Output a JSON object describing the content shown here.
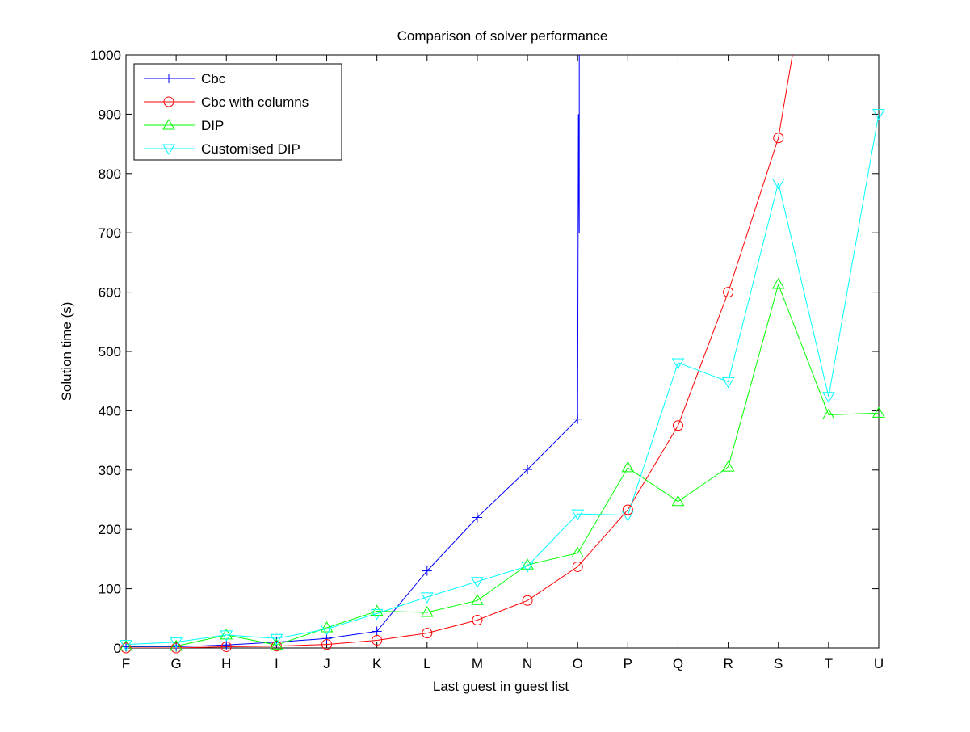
{
  "chart_data": {
    "type": "line",
    "title": "Comparison of solver performance",
    "xlabel": "Last guest in guest list",
    "ylabel": "Solution time (s)",
    "categories": [
      "F",
      "G",
      "H",
      "I",
      "J",
      "K",
      "L",
      "M",
      "N",
      "O",
      "P",
      "Q",
      "R",
      "S",
      "T",
      "U"
    ],
    "ylim": [
      0,
      1000
    ],
    "yticks": [
      0,
      100,
      200,
      300,
      400,
      500,
      600,
      700,
      800,
      900,
      1000
    ],
    "grid": false,
    "legend_position": "top-left",
    "series": [
      {
        "name": "Cbc",
        "color": "#0000ff",
        "marker": "plus",
        "values": [
          2,
          2,
          5,
          10,
          16,
          28,
          130,
          220,
          301,
          386,
          null,
          null,
          null,
          null,
          null,
          null
        ],
        "overflow_note": "line rises vertically past 1000 at O"
      },
      {
        "name": "Cbc with columns",
        "color": "#ff0000",
        "marker": "circle",
        "values": [
          0,
          0,
          2,
          3,
          6,
          13,
          25,
          47,
          80,
          137,
          233,
          375,
          600,
          860,
          null,
          null
        ],
        "overflow_note": "line continues above 1000 after S"
      },
      {
        "name": "DIP",
        "color": "#00ff00",
        "marker": "triangle-up",
        "values": [
          3,
          3,
          22,
          5,
          34,
          62,
          60,
          80,
          140,
          160,
          304,
          247,
          305,
          613,
          393,
          396
        ]
      },
      {
        "name": "Customised DIP",
        "color": "#00ffff",
        "marker": "triangle-down",
        "values": [
          6,
          10,
          22,
          16,
          32,
          58,
          86,
          112,
          138,
          226,
          224,
          481,
          449,
          784,
          424,
          901
        ]
      }
    ]
  }
}
